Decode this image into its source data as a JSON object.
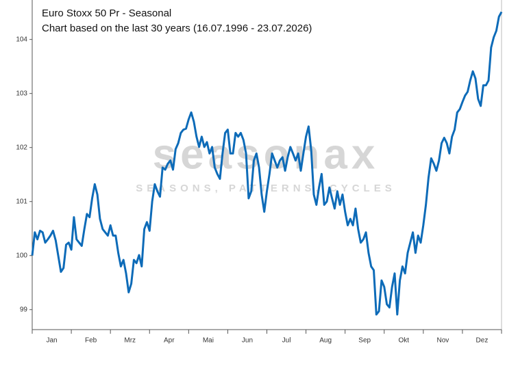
{
  "chart_data": {
    "type": "line",
    "title": "Euro Stoxx 50 Pr - Seasonal",
    "subtitle": "Chart based on the last 30 years (16.07.1996 - 23.07.2026)",
    "watermark": "seasonax",
    "watermark_subtitle": "SEASONS, PATTERNS, CYCLES",
    "months": [
      "Jan",
      "Feb",
      "Mrz",
      "Apr",
      "Mai",
      "Jun",
      "Jul",
      "Aug",
      "Sep",
      "Okt",
      "Nov",
      "Dez"
    ],
    "ylim": [
      98.63,
      104.73
    ],
    "yticks": [
      99,
      100,
      101,
      102,
      103,
      104
    ],
    "color": "#0d6bb8",
    "values": [
      100.0,
      100.43,
      100.3,
      100.46,
      100.43,
      100.24,
      100.3,
      100.37,
      100.46,
      100.28,
      99.99,
      99.7,
      99.77,
      100.2,
      100.24,
      100.11,
      100.71,
      100.3,
      100.24,
      100.18,
      100.49,
      100.77,
      100.71,
      101.06,
      101.32,
      101.13,
      100.68,
      100.49,
      100.43,
      100.37,
      100.56,
      100.37,
      100.37,
      100.05,
      99.8,
      99.92,
      99.67,
      99.32,
      99.48,
      99.92,
      99.86,
      100.01,
      99.8,
      100.49,
      100.62,
      100.46,
      101.0,
      101.32,
      101.19,
      101.09,
      101.63,
      101.59,
      101.7,
      101.76,
      101.59,
      101.97,
      102.08,
      102.27,
      102.33,
      102.35,
      102.52,
      102.65,
      102.48,
      102.2,
      102.01,
      102.2,
      102.01,
      102.1,
      101.89,
      102.01,
      101.63,
      101.51,
      101.42,
      101.89,
      102.27,
      102.33,
      101.89,
      101.89,
      102.27,
      102.2,
      102.27,
      102.14,
      101.89,
      101.06,
      101.19,
      101.76,
      101.89,
      101.63,
      101.13,
      100.81,
      101.19,
      101.51,
      101.89,
      101.76,
      101.63,
      101.76,
      101.82,
      101.57,
      101.82,
      102.01,
      101.89,
      101.76,
      101.89,
      101.57,
      101.89,
      102.2,
      102.39,
      101.95,
      101.13,
      100.94,
      101.26,
      101.51,
      100.94,
      101.0,
      101.26,
      101.06,
      100.87,
      101.19,
      100.94,
      101.13,
      100.81,
      100.56,
      100.68,
      100.56,
      100.87,
      100.49,
      100.24,
      100.3,
      100.43,
      100.05,
      99.8,
      99.73,
      98.91,
      98.97,
      99.54,
      99.42,
      99.1,
      99.04,
      99.42,
      99.67,
      98.91,
      99.54,
      99.8,
      99.67,
      100.05,
      100.24,
      100.43,
      100.05,
      100.37,
      100.24,
      100.56,
      100.94,
      101.44,
      101.8,
      101.7,
      101.57,
      101.76,
      102.08,
      102.18,
      102.08,
      101.89,
      102.2,
      102.33,
      102.65,
      102.71,
      102.84,
      102.96,
      103.03,
      103.24,
      103.41,
      103.28,
      102.9,
      102.77,
      103.15,
      103.15,
      103.24,
      103.85,
      104.04,
      104.16,
      104.42,
      104.51
    ]
  }
}
